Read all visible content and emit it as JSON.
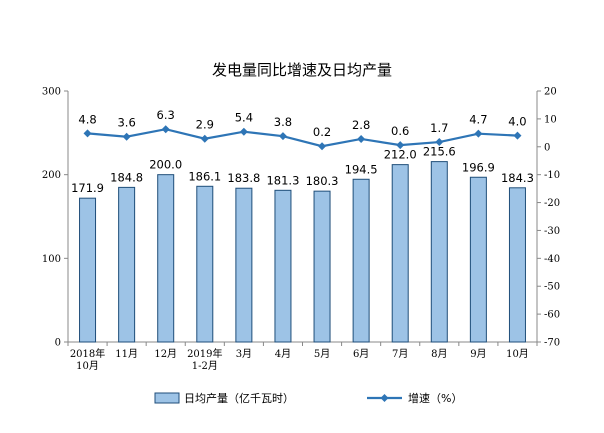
{
  "chart_data": {
    "type": "bar+line",
    "title": "发电量同比增速及日均产量",
    "categories": [
      "2018年\n10月",
      "11月",
      "12月",
      "2019年\n1-2月",
      "3月",
      "4月",
      "5月",
      "6月",
      "7月",
      "8月",
      "9月",
      "10月"
    ],
    "series": [
      {
        "name": "日均产量（亿千瓦时）",
        "type": "bar",
        "axis": "left",
        "values": [
          171.9,
          184.8,
          200.0,
          186.1,
          183.8,
          181.3,
          180.3,
          194.5,
          212.0,
          215.6,
          196.9,
          184.3
        ],
        "labels": [
          "171.9",
          "184.8",
          "200.0",
          "186.1",
          "183.8",
          "181.3",
          "180.3",
          "194.5",
          "212.0",
          "215.6",
          "196.9",
          "184.3"
        ],
        "color": "#9DC3E6",
        "border": "#1F4E79"
      },
      {
        "name": "增速（%）",
        "type": "line",
        "axis": "right",
        "values": [
          4.8,
          3.6,
          6.3,
          2.9,
          5.4,
          3.8,
          0.2,
          2.8,
          0.6,
          1.7,
          4.7,
          4.0
        ],
        "labels": [
          "4.8",
          "3.6",
          "6.3",
          "2.9",
          "5.4",
          "3.8",
          "0.2",
          "2.8",
          "0.6",
          "1.7",
          "4.7",
          "4.0"
        ],
        "color": "#2E75B6"
      }
    ],
    "y_left": {
      "min": 0,
      "max": 300,
      "ticks": [
        "0",
        "100",
        "200",
        "300"
      ]
    },
    "y_right": {
      "min": -70,
      "max": 20,
      "ticks": [
        "20",
        "10",
        "0",
        "-10",
        "-20",
        "-30",
        "-40",
        "-50",
        "-60",
        "-70"
      ]
    },
    "grid": false,
    "legend": "bottom"
  }
}
